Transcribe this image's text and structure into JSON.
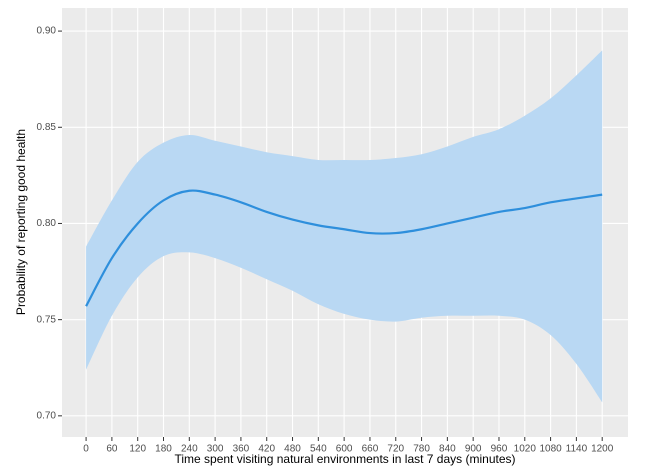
{
  "chart_data": {
    "type": "line",
    "x_label": "Time spent visiting natural environments in last 7 days (minutes)",
    "y_label": "Probability of reporting good health",
    "x": [
      0,
      60,
      120,
      180,
      240,
      300,
      360,
      420,
      480,
      540,
      600,
      660,
      720,
      780,
      840,
      900,
      960,
      1020,
      1080,
      1140,
      1200
    ],
    "series": [
      {
        "color": "#2e8fdc",
        "values": [
          0.757,
          0.782,
          0.8,
          0.812,
          0.817,
          0.815,
          0.811,
          0.806,
          0.802,
          0.799,
          0.797,
          0.795,
          0.795,
          0.797,
          0.8,
          0.803,
          0.806,
          0.808,
          0.811,
          0.813,
          0.815
        ],
        "upper": [
          0.788,
          0.812,
          0.832,
          0.842,
          0.846,
          0.843,
          0.84,
          0.837,
          0.835,
          0.833,
          0.833,
          0.833,
          0.834,
          0.836,
          0.84,
          0.845,
          0.849,
          0.856,
          0.865,
          0.877,
          0.89
        ],
        "lower": [
          0.724,
          0.752,
          0.772,
          0.783,
          0.785,
          0.782,
          0.777,
          0.771,
          0.765,
          0.758,
          0.753,
          0.75,
          0.749,
          0.751,
          0.752,
          0.752,
          0.752,
          0.75,
          0.742,
          0.727,
          0.707
        ],
        "band_color": "#b9d8f3"
      }
    ],
    "xlim": [
      -56,
      1260
    ],
    "xticks": [
      0,
      60,
      120,
      180,
      240,
      300,
      360,
      420,
      480,
      540,
      600,
      660,
      720,
      780,
      840,
      900,
      960,
      1020,
      1080,
      1140,
      1200
    ],
    "ylim": [
      0.689,
      0.912
    ],
    "yticks": [
      {
        "value": 0.7,
        "label": "0.70"
      },
      0.75,
      {
        "value": 0.8,
        "label": "0.80"
      },
      0.85,
      {
        "value": 0.9,
        "label": "0.90"
      }
    ],
    "grid": true
  }
}
